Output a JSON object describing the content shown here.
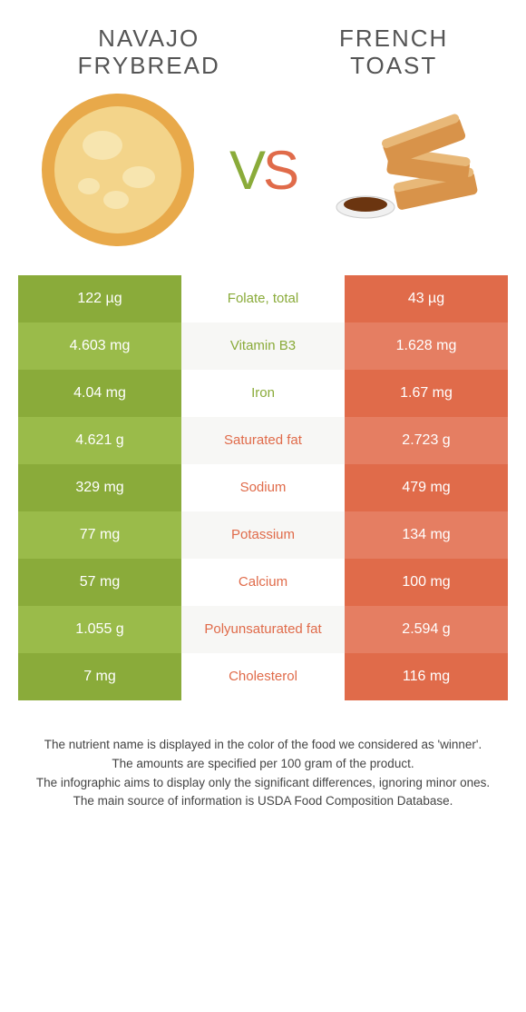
{
  "header": {
    "left_title": "NAVAJO\nFRYBREAD",
    "right_title": "FRENCH\nTOAST",
    "vs": {
      "v": "V",
      "s": "S"
    }
  },
  "colors": {
    "left_odd": "#8aab3a",
    "left_even": "#9abb4a",
    "right_odd": "#e06b4a",
    "right_even": "#e57e62",
    "text_green": "#8aab3a",
    "text_orange": "#e06b4a",
    "background": "#ffffff"
  },
  "comparison": {
    "type": "table",
    "columns": [
      "left_value",
      "nutrient",
      "right_value"
    ],
    "rows": [
      {
        "left": "122 µg",
        "label": "Folate, total",
        "right": "43 µg",
        "winner": "left"
      },
      {
        "left": "4.603 mg",
        "label": "Vitamin B3",
        "right": "1.628 mg",
        "winner": "left"
      },
      {
        "left": "4.04 mg",
        "label": "Iron",
        "right": "1.67 mg",
        "winner": "left"
      },
      {
        "left": "4.621 g",
        "label": "Saturated fat",
        "right": "2.723 g",
        "winner": "right"
      },
      {
        "left": "329 mg",
        "label": "Sodium",
        "right": "479 mg",
        "winner": "right"
      },
      {
        "left": "77 mg",
        "label": "Potassium",
        "right": "134 mg",
        "winner": "right"
      },
      {
        "left": "57 mg",
        "label": "Calcium",
        "right": "100 mg",
        "winner": "right"
      },
      {
        "left": "1.055 g",
        "label": "Polyunsaturated fat",
        "right": "2.594 g",
        "winner": "right"
      },
      {
        "left": "7 mg",
        "label": "Cholesterol",
        "right": "116 mg",
        "winner": "right"
      }
    ]
  },
  "footer": {
    "line1": "The nutrient name is displayed in the color of the food we considered as 'winner'.",
    "line2": "The amounts are specified per 100 gram of the product.",
    "line3": "The infographic aims to display only the significant differences, ignoring minor ones.",
    "line4": "The main source of information is USDA Food Composition Database."
  }
}
